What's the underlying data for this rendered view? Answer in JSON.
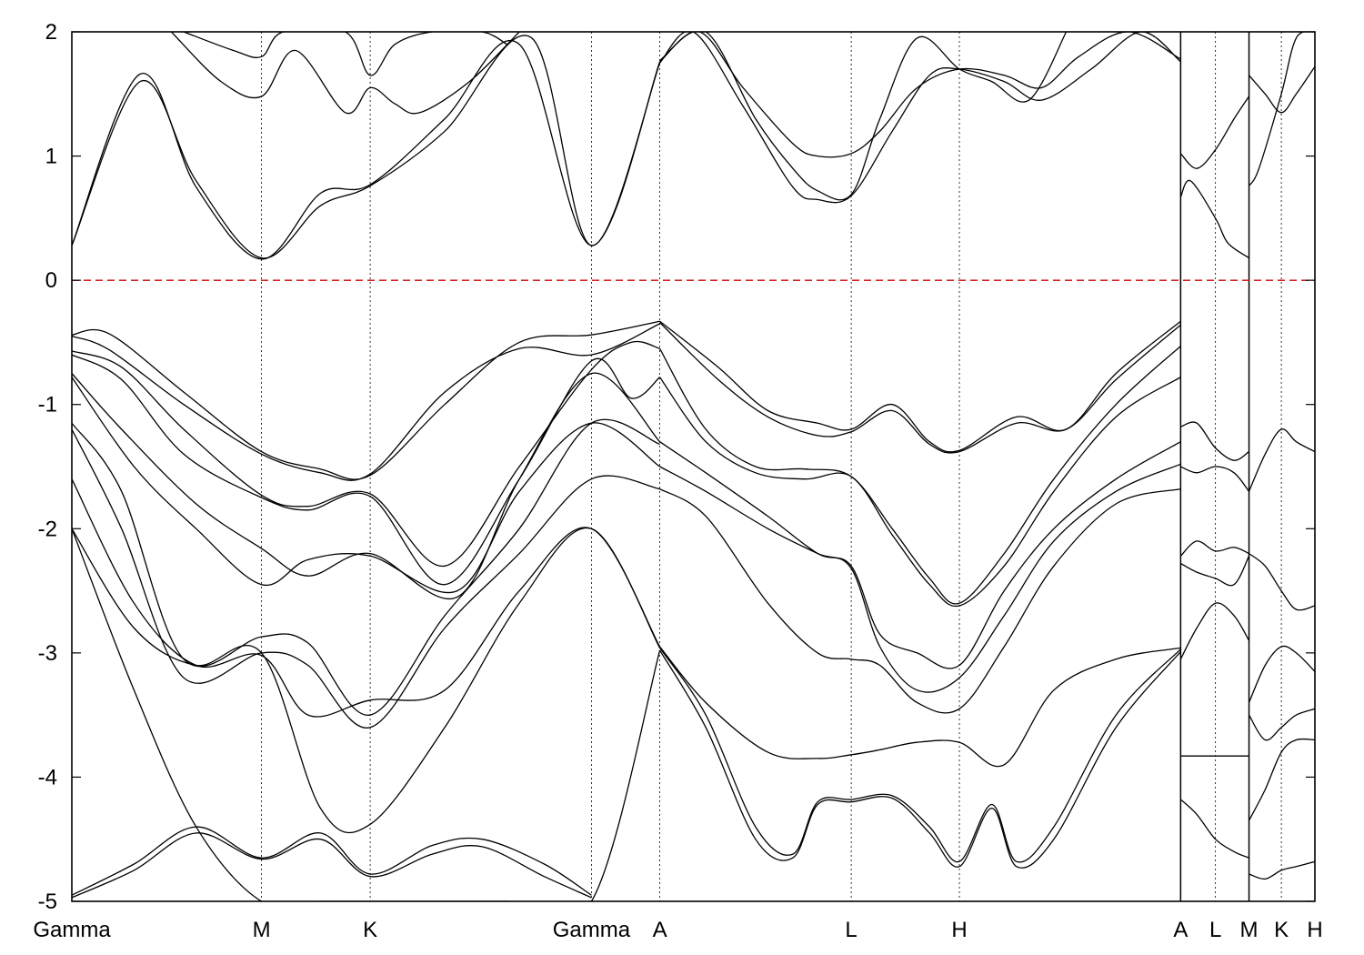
{
  "chart_data": {
    "type": "line",
    "title": "",
    "xlabel": "",
    "ylabel": "",
    "ylim": [
      -5,
      2
    ],
    "xlim": [
      0,
      10
    ],
    "yticks": [
      -5,
      -4,
      -3,
      -2,
      -1,
      0,
      1,
      2
    ],
    "ytick_labels": [
      "-5",
      "-4",
      "-3",
      "-2",
      "-1",
      "0",
      "1",
      "2"
    ],
    "kpoints": [
      {
        "label": "Gamma",
        "x": 0.0
      },
      {
        "label": "M",
        "x": 1.526
      },
      {
        "label": "K",
        "x": 2.4
      },
      {
        "label": "Gamma",
        "x": 4.18
      },
      {
        "label": "A",
        "x": 4.73
      },
      {
        "label": "L",
        "x": 6.27
      },
      {
        "label": "H",
        "x": 7.14
      },
      {
        "label": "A",
        "x": 8.92
      },
      {
        "label": "L",
        "x": 9.2
      },
      {
        "label": "M",
        "x": 9.47
      },
      {
        "label": "K",
        "x": 9.73
      },
      {
        "label": "H",
        "x": 10.0
      }
    ],
    "segment_breaks": [
      8.92,
      9.47
    ],
    "fermi_level": 0,
    "fermi_color": "#cc0000",
    "line_color": "#000000",
    "grid": false,
    "series": [
      {
        "x": [
          0,
          0.55,
          1.0,
          1.526,
          2.0,
          2.4,
          3.0,
          3.7,
          4.18,
          4.73
        ],
        "y": [
          0.28,
          1.6,
          0.8,
          0.18,
          0.6,
          0.76,
          1.2,
          1.95,
          0.28,
          1.75
        ]
      },
      {
        "x": [
          0,
          0.55,
          1.0,
          1.526,
          2.0,
          2.4,
          3.0,
          3.6,
          4.18,
          4.73
        ],
        "y": [
          0.28,
          1.66,
          0.75,
          0.17,
          0.7,
          0.77,
          1.3,
          1.9,
          0.28,
          1.76
        ]
      },
      {
        "x": [
          0.8,
          1.2,
          1.526,
          1.8,
          2.2,
          2.4,
          2.6,
          2.8,
          3.2,
          3.6
        ],
        "y": [
          2.0,
          1.6,
          1.48,
          1.85,
          1.35,
          1.55,
          1.42,
          1.35,
          1.6,
          2.0
        ]
      },
      {
        "x": [
          0.9,
          1.3,
          1.526,
          1.7,
          2.2,
          2.4,
          2.6,
          2.9,
          3.3,
          3.5
        ],
        "y": [
          2.0,
          1.85,
          1.8,
          2.0,
          2.0,
          1.65,
          1.9,
          2.0,
          2.0,
          1.9
        ]
      },
      {
        "x": [
          4.73,
          5.0,
          5.4,
          5.8,
          6.0,
          6.27,
          6.6,
          6.9,
          7.14,
          7.5,
          7.8,
          8.2,
          8.6,
          8.92
        ],
        "y": [
          1.75,
          2.0,
          1.4,
          0.75,
          0.65,
          0.68,
          1.2,
          1.65,
          1.7,
          1.6,
          1.45,
          1.7,
          2.0,
          1.76
        ]
      },
      {
        "x": [
          4.73,
          5.05,
          5.4,
          5.8,
          6.0,
          6.27,
          6.5,
          6.8,
          7.14,
          7.5,
          7.8,
          8.1,
          8.5,
          8.92
        ],
        "y": [
          1.76,
          2.0,
          1.55,
          1.1,
          1.0,
          1.02,
          1.2,
          1.55,
          1.7,
          1.65,
          1.55,
          1.8,
          2.0,
          1.78
        ]
      },
      {
        "x": [
          4.73,
          5.1,
          5.5,
          5.8,
          6.0,
          6.27,
          6.5,
          6.8,
          7.14,
          7.4,
          7.7,
          8.0
        ],
        "y": [
          1.77,
          2.0,
          1.3,
          0.9,
          0.72,
          0.69,
          1.3,
          1.95,
          1.7,
          1.6,
          1.45,
          2.0
        ]
      },
      {
        "x": [
          8.92,
          9.0,
          9.2,
          9.3,
          9.47
        ],
        "y": [
          0.67,
          0.8,
          0.5,
          0.3,
          0.18
        ]
      },
      {
        "x": [
          8.92,
          9.05,
          9.2,
          9.35,
          9.47
        ],
        "y": [
          1.02,
          0.9,
          1.05,
          1.3,
          1.48
        ]
      },
      {
        "x": [
          9.47,
          9.6,
          9.73,
          9.85,
          10.0
        ],
        "y": [
          1.65,
          1.5,
          1.35,
          1.5,
          1.72
        ]
      },
      {
        "x": [
          9.47,
          9.55,
          9.73,
          9.85,
          10.0
        ],
        "y": [
          0.76,
          0.9,
          1.5,
          1.95,
          2.0
        ]
      },
      {
        "x": [
          0,
          0.3,
          0.9,
          1.526,
          2.0,
          2.4,
          3.0,
          3.6,
          4.18,
          4.73
        ],
        "y": [
          -0.44,
          -0.43,
          -0.9,
          -1.38,
          -1.52,
          -1.57,
          -1.0,
          -0.5,
          -0.44,
          -0.33
        ]
      },
      {
        "x": [
          0,
          0.3,
          0.9,
          1.526,
          2.0,
          2.4,
          3.0,
          3.6,
          4.18,
          4.73
        ],
        "y": [
          -0.45,
          -0.56,
          -1.0,
          -1.4,
          -1.55,
          -1.56,
          -0.9,
          -0.55,
          -0.6,
          -0.35
        ]
      },
      {
        "x": [
          0,
          0.4,
          0.9,
          1.526,
          1.9,
          2.4,
          3.0,
          3.6,
          4.18,
          4.5,
          4.73
        ],
        "y": [
          -0.57,
          -0.7,
          -1.2,
          -1.73,
          -1.82,
          -1.72,
          -2.3,
          -1.5,
          -0.72,
          -0.5,
          -0.55
        ]
      },
      {
        "x": [
          0,
          0.4,
          0.9,
          1.526,
          1.9,
          2.4,
          3.0,
          3.6,
          4.18,
          4.5,
          4.73
        ],
        "y": [
          -0.6,
          -0.8,
          -1.4,
          -1.75,
          -1.85,
          -1.74,
          -2.45,
          -1.6,
          -0.65,
          -0.95,
          -0.78
        ]
      },
      {
        "x": [
          0,
          0.4,
          1.0,
          1.526,
          1.9,
          2.4,
          3.1,
          3.6,
          4.18,
          4.73
        ],
        "y": [
          -0.75,
          -1.2,
          -1.8,
          -2.16,
          -2.38,
          -2.2,
          -2.55,
          -1.6,
          -0.75,
          -1.3
        ]
      },
      {
        "x": [
          0,
          0.5,
          1.0,
          1.526,
          1.9,
          2.4,
          3.1,
          3.6,
          4.18,
          4.73
        ],
        "y": [
          -0.78,
          -1.5,
          -2.0,
          -2.45,
          -2.25,
          -2.22,
          -2.5,
          -1.7,
          -1.15,
          -1.5
        ]
      },
      {
        "x": [
          0,
          0.4,
          0.9,
          1.526,
          1.9,
          2.4,
          3.0,
          3.6,
          4.18,
          4.73
        ],
        "y": [
          -1.15,
          -1.7,
          -3.05,
          -2.87,
          -2.92,
          -3.5,
          -2.7,
          -2.0,
          -1.15,
          -1.32
        ]
      },
      {
        "x": [
          0,
          0.4,
          0.9,
          1.526,
          1.9,
          2.4,
          3.0,
          3.6,
          4.18,
          4.73
        ],
        "y": [
          -1.2,
          -2.0,
          -3.2,
          -3.0,
          -3.1,
          -3.6,
          -2.8,
          -2.2,
          -1.6,
          -1.68
        ]
      },
      {
        "x": [
          0,
          0.5,
          1.0,
          1.526,
          1.9,
          2.4,
          3.0,
          3.6,
          4.18,
          4.73
        ],
        "y": [
          -1.6,
          -2.6,
          -3.1,
          -3.02,
          -3.5,
          -3.38,
          -3.3,
          -2.5,
          -2.0,
          -2.95
        ]
      },
      {
        "x": [
          0,
          0.5,
          1.0,
          1.526,
          2.0,
          2.4,
          3.0,
          3.6,
          4.18,
          4.73
        ],
        "y": [
          -2.0,
          -2.8,
          -3.1,
          -3.0,
          -4.25,
          -4.38,
          -3.6,
          -2.6,
          -2.0,
          -2.96
        ]
      },
      {
        "x": [
          0,
          0.5,
          1.0,
          1.526,
          2.0,
          2.4,
          3.0,
          3.5,
          4.18,
          4.73
        ],
        "y": [
          -2.0,
          -3.3,
          -4.4,
          -5.0,
          -5.0,
          -5.0,
          -5.0,
          -5.0,
          -5.0,
          -2.98
        ]
      },
      {
        "x": [
          0,
          0.5,
          1.0,
          1.526,
          2.0,
          2.4,
          2.9,
          3.3,
          3.8,
          4.18
        ],
        "y": [
          -4.95,
          -4.7,
          -4.4,
          -4.65,
          -4.45,
          -4.78,
          -4.55,
          -4.5,
          -4.7,
          -4.95
        ]
      },
      {
        "x": [
          0,
          0.5,
          1.0,
          1.526,
          2.0,
          2.4,
          2.9,
          3.3,
          3.8,
          4.18
        ],
        "y": [
          -4.97,
          -4.75,
          -4.45,
          -4.66,
          -4.5,
          -4.8,
          -4.62,
          -4.56,
          -4.8,
          -4.97
        ]
      },
      {
        "x": [
          4.73,
          5.2,
          5.6,
          6.0,
          6.27,
          6.6,
          6.9,
          7.14,
          7.6,
          8.0,
          8.4,
          8.92
        ],
        "y": [
          -0.33,
          -0.7,
          -1.05,
          -1.15,
          -1.2,
          -1.0,
          -1.3,
          -1.37,
          -1.1,
          -1.2,
          -0.75,
          -0.33
        ]
      },
      {
        "x": [
          4.73,
          5.2,
          5.6,
          6.0,
          6.27,
          6.6,
          6.9,
          7.14,
          7.6,
          8.0,
          8.4,
          8.92
        ],
        "y": [
          -0.34,
          -0.8,
          -1.1,
          -1.25,
          -1.22,
          -1.05,
          -1.32,
          -1.38,
          -1.15,
          -1.2,
          -0.8,
          -0.36
        ]
      },
      {
        "x": [
          4.73,
          5.1,
          5.5,
          5.9,
          6.27,
          6.6,
          6.9,
          7.14,
          7.5,
          7.9,
          8.4,
          8.92
        ],
        "y": [
          -0.55,
          -1.2,
          -1.5,
          -1.52,
          -1.58,
          -2.0,
          -2.4,
          -2.6,
          -2.2,
          -1.6,
          -1.0,
          -0.53
        ]
      },
      {
        "x": [
          4.73,
          5.1,
          5.5,
          5.9,
          6.27,
          6.6,
          6.9,
          7.14,
          7.5,
          7.9,
          8.4,
          8.92
        ],
        "y": [
          -0.78,
          -1.3,
          -1.55,
          -1.6,
          -1.58,
          -2.05,
          -2.45,
          -2.62,
          -2.3,
          -1.7,
          -1.1,
          -0.78
        ]
      },
      {
        "x": [
          4.73,
          5.1,
          5.6,
          6.0,
          6.27,
          6.5,
          6.8,
          7.14,
          7.5,
          7.9,
          8.4,
          8.92
        ],
        "y": [
          -1.3,
          -1.55,
          -1.9,
          -2.2,
          -2.3,
          -2.85,
          -3.0,
          -3.1,
          -2.5,
          -2.0,
          -1.6,
          -1.3
        ]
      },
      {
        "x": [
          4.73,
          5.1,
          5.6,
          6.0,
          6.27,
          6.5,
          6.8,
          7.14,
          7.5,
          7.9,
          8.4,
          8.92
        ],
        "y": [
          -1.5,
          -1.7,
          -2.0,
          -2.2,
          -2.32,
          -2.95,
          -3.3,
          -3.2,
          -2.7,
          -2.1,
          -1.7,
          -1.48
        ]
      },
      {
        "x": [
          4.73,
          5.1,
          5.6,
          6.0,
          6.27,
          6.5,
          6.8,
          7.14,
          7.5,
          7.9,
          8.4,
          8.92
        ],
        "y": [
          -1.68,
          -1.9,
          -2.6,
          -3.0,
          -3.05,
          -3.1,
          -3.4,
          -3.45,
          -2.95,
          -2.3,
          -1.8,
          -1.68
        ]
      },
      {
        "x": [
          4.73,
          5.1,
          5.6,
          6.0,
          6.27,
          6.5,
          6.8,
          7.14,
          7.5,
          7.9,
          8.4,
          8.92
        ],
        "y": [
          -2.95,
          -3.4,
          -3.8,
          -3.85,
          -3.82,
          -3.78,
          -3.72,
          -3.72,
          -3.9,
          -3.3,
          -3.05,
          -2.96
        ]
      },
      {
        "x": [
          4.73,
          5.1,
          5.5,
          5.8,
          6.0,
          6.27,
          6.6,
          6.9,
          7.14,
          7.4,
          7.6,
          7.9,
          8.4,
          8.92
        ],
        "y": [
          -2.96,
          -3.5,
          -4.4,
          -4.62,
          -4.2,
          -4.18,
          -4.15,
          -4.4,
          -4.68,
          -4.22,
          -4.68,
          -4.4,
          -3.5,
          -2.97
        ]
      },
      {
        "x": [
          4.73,
          5.1,
          5.5,
          5.8,
          6.0,
          6.27,
          6.6,
          6.9,
          7.14,
          7.4,
          7.6,
          7.9,
          8.4,
          8.92
        ],
        "y": [
          -2.98,
          -3.6,
          -4.5,
          -4.65,
          -4.22,
          -4.2,
          -4.17,
          -4.45,
          -4.72,
          -4.25,
          -4.72,
          -4.5,
          -3.6,
          -2.99
        ]
      },
      {
        "x": [
          8.92,
          9.05,
          9.2,
          9.35,
          9.47
        ],
        "y": [
          -1.18,
          -1.15,
          -1.35,
          -1.45,
          -1.38
        ]
      },
      {
        "x": [
          8.92,
          9.05,
          9.2,
          9.35,
          9.47
        ],
        "y": [
          -1.5,
          -1.55,
          -1.5,
          -1.55,
          -1.7
        ]
      },
      {
        "x": [
          8.92,
          9.05,
          9.2,
          9.35,
          9.47
        ],
        "y": [
          -2.22,
          -2.1,
          -2.18,
          -2.15,
          -2.2
        ]
      },
      {
        "x": [
          8.92,
          9.05,
          9.2,
          9.35,
          9.47
        ],
        "y": [
          -2.28,
          -2.35,
          -2.4,
          -2.45,
          -2.22
        ]
      },
      {
        "x": [
          8.92,
          9.05,
          9.2,
          9.35,
          9.47
        ],
        "y": [
          -3.05,
          -2.8,
          -2.6,
          -2.7,
          -2.9
        ]
      },
      {
        "x": [
          8.92,
          9.47
        ],
        "y": [
          -3.83,
          -3.83
        ]
      },
      {
        "x": [
          8.92,
          9.05,
          9.2,
          9.35,
          9.47
        ],
        "y": [
          -4.18,
          -4.3,
          -4.5,
          -4.6,
          -4.65
        ]
      },
      {
        "x": [
          9.47,
          9.6,
          9.73,
          9.85,
          10.0
        ],
        "y": [
          -1.7,
          -1.4,
          -1.2,
          -1.3,
          -1.38
        ]
      },
      {
        "x": [
          9.47,
          9.6,
          9.73,
          9.85,
          10.0
        ],
        "y": [
          -2.2,
          -2.3,
          -2.5,
          -2.65,
          -2.62
        ]
      },
      {
        "x": [
          9.47,
          9.6,
          9.73,
          9.85,
          10.0
        ],
        "y": [
          -3.4,
          -3.1,
          -2.95,
          -3.0,
          -3.15
        ]
      },
      {
        "x": [
          9.47,
          9.6,
          9.73,
          9.85,
          10.0
        ],
        "y": [
          -3.5,
          -3.7,
          -3.6,
          -3.5,
          -3.45
        ]
      },
      {
        "x": [
          9.47,
          9.6,
          9.73,
          9.85,
          10.0
        ],
        "y": [
          -4.35,
          -4.1,
          -3.8,
          -3.7,
          -3.7
        ]
      },
      {
        "x": [
          9.47,
          9.6,
          9.73,
          9.85,
          10.0
        ],
        "y": [
          -4.78,
          -4.82,
          -4.75,
          -4.72,
          -4.68
        ]
      }
    ]
  }
}
